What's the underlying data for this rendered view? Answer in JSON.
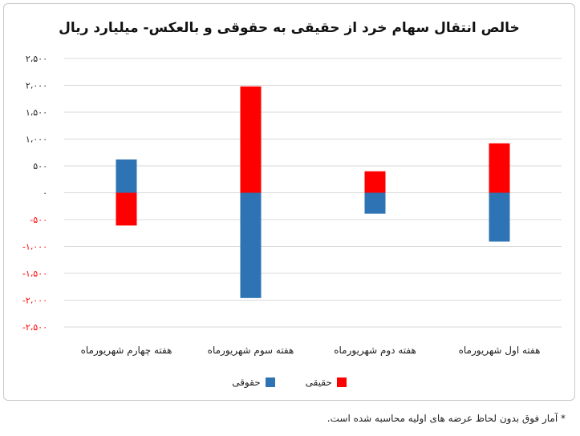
{
  "chart_data": {
    "type": "bar",
    "title": "خالص انتقال سهام خرد از حقیقی به حقوقی و بالعکس- میلیارد ریال",
    "categories": [
      "هفته اول شهریورماه",
      "هفته دوم شهریورماه",
      "هفته سوم شهریورماه",
      "هفته چهارم شهریورماه"
    ],
    "series": [
      {
        "name": "حقیقی",
        "color": "#ff0000",
        "values": [
          920,
          400,
          1980,
          -610
        ]
      },
      {
        "name": "حقوقی",
        "color": "#2e74b5",
        "values": [
          -910,
          -390,
          -1960,
          620
        ]
      }
    ],
    "ylim": [
      -2500,
      2500
    ],
    "yticks": [
      2500,
      2000,
      1500,
      1000,
      500,
      0,
      -500,
      -1000,
      -1500,
      -2000,
      -2500
    ],
    "ytick_labels": [
      "۲،۵۰۰",
      "۲،۰۰۰",
      "۱،۵۰۰",
      "۱،۰۰۰",
      "۵۰۰",
      "۰",
      "-۵۰۰",
      "-۱،۰۰۰",
      "-۱،۵۰۰",
      "-۲،۰۰۰",
      "-۲،۵۰۰"
    ],
    "grid": true,
    "legend": "bottom"
  },
  "footnote": "* آمار فوق بدون لحاظ عرضه های اولیه محاسبه شده است."
}
